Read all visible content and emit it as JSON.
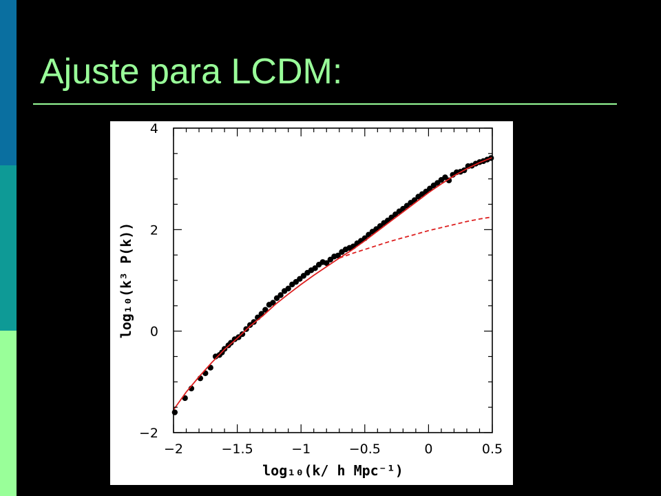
{
  "slide": {
    "title": "Ajuste para LCDM:",
    "colors": {
      "background": "#000000",
      "title": "#99ff99",
      "rule": "#99ff99",
      "sidebar_top": "#0a6fa0",
      "sidebar_mid": "#0e9a96",
      "sidebar_bottom": "#99ff99"
    }
  },
  "chart_data": {
    "type": "scatter",
    "xlabel": "log₁₀(k/ h Mpc⁻¹)",
    "ylabel": "log₁₀(k³ P(k))",
    "xlim": [
      -2,
      0.5
    ],
    "ylim": [
      -2,
      4
    ],
    "x_ticks": [
      {
        "value": -2,
        "label": "−2"
      },
      {
        "value": -1.5,
        "label": "−1.5"
      },
      {
        "value": -1,
        "label": "−1"
      },
      {
        "value": -0.5,
        "label": "−0.5"
      },
      {
        "value": 0,
        "label": "0"
      },
      {
        "value": 0.5,
        "label": "0.5"
      }
    ],
    "y_ticks": [
      {
        "value": -2,
        "label": "−2"
      },
      {
        "value": 0,
        "label": "0"
      },
      {
        "value": 2,
        "label": "2"
      },
      {
        "value": 4,
        "label": "4"
      }
    ],
    "grid": false,
    "legend": "none",
    "series": [
      {
        "style": "scatter",
        "color": "#000000",
        "x": [
          -1.99,
          -1.91,
          -1.86,
          -1.79,
          -1.75,
          -1.71,
          -1.67,
          -1.64,
          -1.62,
          -1.6,
          -1.57,
          -1.55,
          -1.52,
          -1.49,
          -1.46,
          -1.43,
          -1.4,
          -1.37,
          -1.34,
          -1.31,
          -1.28,
          -1.25,
          -1.22,
          -1.19,
          -1.16,
          -1.13,
          -1.1,
          -1.07,
          -1.04,
          -1.01,
          -0.98,
          -0.95,
          -0.92,
          -0.89,
          -0.86,
          -0.83,
          -0.8,
          -0.77,
          -0.74,
          -0.71,
          -0.68,
          -0.65,
          -0.62,
          -0.59,
          -0.56,
          -0.53,
          -0.5,
          -0.47,
          -0.44,
          -0.41,
          -0.38,
          -0.35,
          -0.32,
          -0.29,
          -0.26,
          -0.23,
          -0.2,
          -0.17,
          -0.14,
          -0.11,
          -0.08,
          -0.05,
          -0.02,
          0.01,
          0.04,
          0.07,
          0.1,
          0.13,
          0.16,
          0.19,
          0.22,
          0.25,
          0.28,
          0.31,
          0.34,
          0.37,
          0.4,
          0.43,
          0.46,
          0.49
        ],
        "y": [
          -1.6,
          -1.32,
          -1.13,
          -0.93,
          -0.83,
          -0.72,
          -0.5,
          -0.47,
          -0.42,
          -0.35,
          -0.28,
          -0.23,
          -0.16,
          -0.12,
          -0.06,
          0.04,
          0.12,
          0.18,
          0.27,
          0.34,
          0.42,
          0.52,
          0.56,
          0.65,
          0.71,
          0.79,
          0.84,
          0.92,
          0.97,
          1.03,
          1.09,
          1.15,
          1.2,
          1.24,
          1.31,
          1.36,
          1.34,
          1.41,
          1.47,
          1.49,
          1.56,
          1.61,
          1.64,
          1.67,
          1.73,
          1.78,
          1.83,
          1.9,
          1.96,
          2.01,
          2.07,
          2.13,
          2.18,
          2.24,
          2.3,
          2.36,
          2.41,
          2.47,
          2.53,
          2.58,
          2.65,
          2.7,
          2.75,
          2.81,
          2.87,
          2.92,
          2.98,
          3.03,
          2.97,
          3.08,
          3.13,
          3.14,
          3.17,
          3.25,
          3.26,
          3.3,
          3.33,
          3.35,
          3.38,
          3.41
        ]
      },
      {
        "style": "solid-line",
        "color": "#dd1f1f",
        "x": [
          -2,
          -1.9,
          -1.8,
          -1.7,
          -1.6,
          -1.5,
          -1.4,
          -1.3,
          -1.2,
          -1.1,
          -1.0,
          -0.9,
          -0.8,
          -0.7,
          -0.6,
          -0.5,
          -0.4,
          -0.3,
          -0.2,
          -0.1,
          0.0,
          0.1,
          0.2,
          0.3,
          0.4,
          0.5
        ],
        "y": [
          -1.55,
          -1.2,
          -0.9,
          -0.62,
          -0.36,
          -0.14,
          0.1,
          0.3,
          0.53,
          0.73,
          0.92,
          1.1,
          1.27,
          1.44,
          1.6,
          1.78,
          1.97,
          2.16,
          2.35,
          2.54,
          2.73,
          2.9,
          3.06,
          3.2,
          3.32,
          3.42
        ]
      },
      {
        "style": "dashed-line",
        "color": "#dd1f1f",
        "x": [
          -0.7,
          -0.6,
          -0.5,
          -0.4,
          -0.3,
          -0.2,
          -0.1,
          0.0,
          0.1,
          0.2,
          0.3,
          0.4,
          0.5
        ],
        "y": [
          1.44,
          1.53,
          1.61,
          1.69,
          1.77,
          1.84,
          1.91,
          1.98,
          2.04,
          2.1,
          2.16,
          2.21,
          2.25
        ]
      }
    ]
  }
}
